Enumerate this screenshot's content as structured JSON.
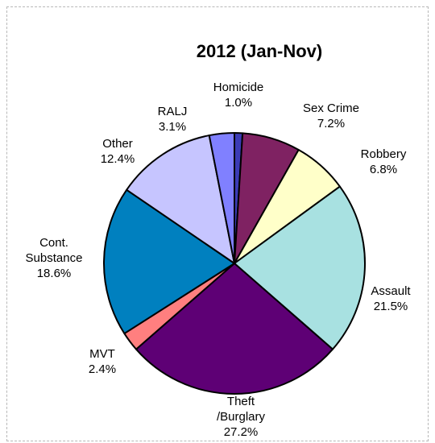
{
  "chart_data": {
    "type": "pie",
    "title": "2012 (Jan-Nov)",
    "start_angle_deg": 0,
    "direction": "clockwise",
    "slices": [
      {
        "name": "Homicide",
        "label_lines": [
          "Homicide",
          "1.0%"
        ],
        "value": 1.0,
        "color": "#3b3bb6"
      },
      {
        "name": "Sex Crime",
        "label_lines": [
          "Sex Crime",
          "7.2%"
        ],
        "value": 7.2,
        "color": "#7f2262"
      },
      {
        "name": "Robbery",
        "label_lines": [
          "Robbery",
          "6.8%"
        ],
        "value": 6.8,
        "color": "#ffffc9"
      },
      {
        "name": "Assault",
        "label_lines": [
          "Assault",
          "21.5%"
        ],
        "value": 21.5,
        "color": "#a8e1e1"
      },
      {
        "name": "Theft /Burglary",
        "label_lines": [
          "Theft",
          "/Burglary",
          "27.2%"
        ],
        "value": 27.2,
        "color": "#5e0075"
      },
      {
        "name": "MVT",
        "label_lines": [
          "MVT",
          "2.4%"
        ],
        "value": 2.4,
        "color": "#ff7f7f"
      },
      {
        "name": "Cont. Substance",
        "label_lines": [
          "Cont.",
          "Substance",
          "18.6%"
        ],
        "value": 18.6,
        "color": "#0080bf"
      },
      {
        "name": "Other",
        "label_lines": [
          "Other",
          "12.4%"
        ],
        "value": 12.4,
        "color": "#c6c5ff"
      },
      {
        "name": "RALJ",
        "label_lines": [
          "RALJ",
          "3.1%"
        ],
        "value": 3.1,
        "color": "#8080ff"
      }
    ]
  }
}
